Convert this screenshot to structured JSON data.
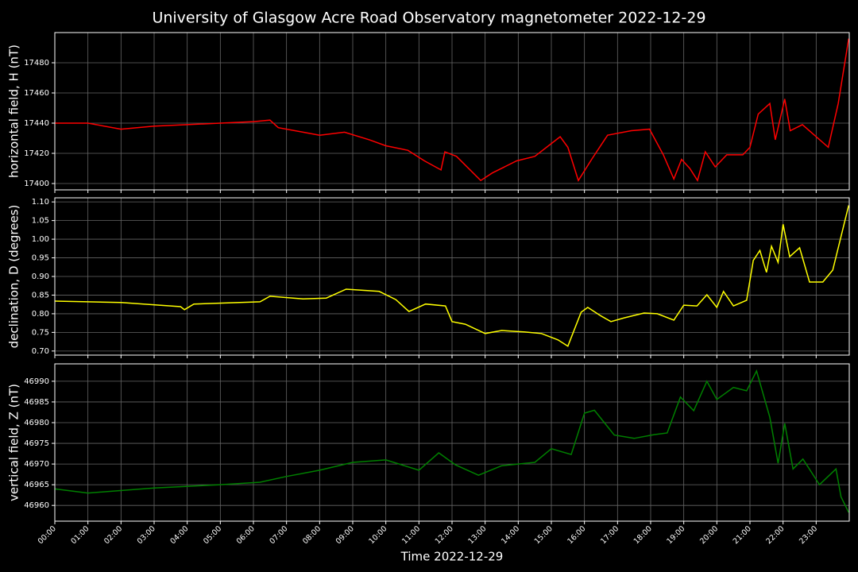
{
  "title": "University of Glasgow Acre Road Observatory magnetometer 2022-12-29",
  "chart_data": [
    {
      "type": "line",
      "ylabel": "horizontal field, H (nT)",
      "x": [
        "00:00",
        "01:00",
        "02:00",
        "03:00",
        "04:00",
        "05:00",
        "06:00",
        "06:30",
        "06:45",
        "07:30",
        "08:00",
        "08:45",
        "09:30",
        "10:00",
        "10:40",
        "11:10",
        "11:40",
        "11:47",
        "12:08",
        "12:52",
        "13:13",
        "13:57",
        "14:30",
        "15:16",
        "15:30",
        "15:49",
        "16:13",
        "16:42",
        "17:25",
        "17:58",
        "18:23",
        "18:42",
        "18:56",
        "19:11",
        "19:25",
        "19:39",
        "19:57",
        "20:18",
        "20:47",
        "21:00",
        "21:15",
        "21:36",
        "21:46",
        "22:03",
        "22:13",
        "22:35",
        "23:22",
        "23:40",
        "23:59"
      ],
      "values": [
        17440,
        17440,
        17436,
        17438,
        17439,
        17440,
        17441,
        17442,
        17437,
        17434,
        17432,
        17434,
        17429,
        17425,
        17422,
        17415,
        17409,
        17421,
        17418,
        17402,
        17407,
        17415,
        17418,
        17431,
        17424,
        17402,
        17416,
        17432,
        17435,
        17436,
        17419,
        17403,
        17416,
        17410,
        17402,
        17421,
        17411,
        17419,
        17419,
        17424,
        17446,
        17453,
        17429,
        17456,
        17435,
        17439,
        17424,
        17453,
        17496
      ],
      "color": "#ff0000",
      "xlim": [
        "00:00",
        "24:00"
      ],
      "xticks": [
        "00:00",
        "01:00",
        "02:00",
        "03:00",
        "04:00",
        "05:00",
        "06:00",
        "07:00",
        "08:00",
        "09:00",
        "10:00",
        "11:00",
        "12:00",
        "13:00",
        "14:00",
        "15:00",
        "16:00",
        "17:00",
        "18:00",
        "19:00",
        "20:00",
        "21:00",
        "22:00",
        "23:00"
      ],
      "ylim": [
        17395.8,
        17500
      ],
      "yticks": [
        17400,
        17420,
        17440,
        17460,
        17480
      ],
      "grid": true
    },
    {
      "type": "line",
      "ylabel": "declination, D (degrees)",
      "x": [
        "00:00",
        "02:00",
        "03:48",
        "03:55",
        "04:12",
        "06:12",
        "06:30",
        "07:30",
        "08:12",
        "08:48",
        "09:48",
        "10:18",
        "10:42",
        "11:12",
        "11:48",
        "12:00",
        "12:24",
        "13:00",
        "13:30",
        "14:12",
        "14:42",
        "15:12",
        "15:30",
        "15:54",
        "16:06",
        "16:30",
        "16:48",
        "17:12",
        "17:48",
        "18:12",
        "18:42",
        "19:00",
        "19:24",
        "19:42",
        "20:00",
        "20:12",
        "20:30",
        "20:54",
        "21:06",
        "21:18",
        "21:30",
        "21:39",
        "21:51",
        "22:00",
        "22:12",
        "22:30",
        "22:48",
        "23:12",
        "23:30",
        "23:59"
      ],
      "values": [
        0.834,
        0.83,
        0.819,
        0.811,
        0.826,
        0.832,
        0.847,
        0.84,
        0.842,
        0.866,
        0.86,
        0.838,
        0.806,
        0.826,
        0.821,
        0.779,
        0.772,
        0.747,
        0.755,
        0.751,
        0.747,
        0.73,
        0.713,
        0.804,
        0.817,
        0.794,
        0.779,
        0.789,
        0.802,
        0.8,
        0.783,
        0.823,
        0.821,
        0.851,
        0.817,
        0.86,
        0.821,
        0.836,
        0.943,
        0.97,
        0.911,
        0.981,
        0.938,
        1.04,
        0.953,
        0.977,
        0.885,
        0.885,
        0.917,
        1.091
      ],
      "color": "#ffff00",
      "xlim": [
        "00:00",
        "24:00"
      ],
      "xticks": [
        "00:00",
        "01:00",
        "02:00",
        "03:00",
        "04:00",
        "05:00",
        "06:00",
        "07:00",
        "08:00",
        "09:00",
        "10:00",
        "11:00",
        "12:00",
        "13:00",
        "14:00",
        "15:00",
        "16:00",
        "17:00",
        "18:00",
        "19:00",
        "20:00",
        "21:00",
        "22:00",
        "23:00"
      ],
      "ylim": [
        0.689,
        1.111
      ],
      "yticks": [
        {
          "value": 0.7,
          "label": "0.70"
        },
        0.75,
        {
          "value": 0.8,
          "label": "0.80"
        },
        0.85,
        {
          "value": 0.9,
          "label": "0.90"
        },
        0.95,
        {
          "value": 1.0,
          "label": "1.00"
        },
        1.05,
        {
          "value": 1.1,
          "label": "1.10"
        }
      ],
      "grid": true
    },
    {
      "type": "line",
      "ylabel": "vertical field, Z (nT)",
      "xlabel": "Time 2022-12-29",
      "x": [
        "00:00",
        "01:00",
        "03:00",
        "05:00",
        "06:12",
        "07:00",
        "08:00",
        "09:00",
        "10:00",
        "11:00",
        "11:36",
        "12:06",
        "12:48",
        "13:30",
        "14:30",
        "15:00",
        "15:36",
        "16:00",
        "16:18",
        "16:54",
        "17:30",
        "18:06",
        "18:30",
        "18:54",
        "19:18",
        "19:42",
        "20:00",
        "20:30",
        "20:54",
        "21:12",
        "21:36",
        "21:51",
        "22:03",
        "22:18",
        "22:36",
        "23:06",
        "23:36",
        "23:45",
        "23:59"
      ],
      "values": [
        46964,
        46963,
        46964.2,
        46965,
        46965.6,
        46967,
        46968.5,
        46970.4,
        46971,
        46968.5,
        46972.7,
        46969.8,
        46967.3,
        46969.6,
        46970.4,
        46973.7,
        46972.3,
        46982.3,
        46983,
        46977,
        46976.2,
        46977.1,
        46977.5,
        46986.2,
        46982.9,
        46990,
        46985.6,
        46988.5,
        46987.7,
        46992.5,
        46981.3,
        46970.2,
        46979.8,
        46968.8,
        46971.2,
        46965,
        46968.8,
        46962.1,
        46958.3
      ],
      "color": "#008000",
      "xlim": [
        "00:00",
        "24:00"
      ],
      "xticks": [
        "00:00",
        "01:00",
        "02:00",
        "03:00",
        "04:00",
        "05:00",
        "06:00",
        "07:00",
        "08:00",
        "09:00",
        "10:00",
        "11:00",
        "12:00",
        "13:00",
        "14:00",
        "15:00",
        "16:00",
        "17:00",
        "18:00",
        "19:00",
        "20:00",
        "21:00",
        "22:00",
        "23:00"
      ],
      "ylim": [
        46956.2,
        46994.2
      ],
      "yticks": [
        46960,
        46965,
        46970,
        46975,
        46980,
        46985,
        46990
      ],
      "grid": true
    }
  ]
}
